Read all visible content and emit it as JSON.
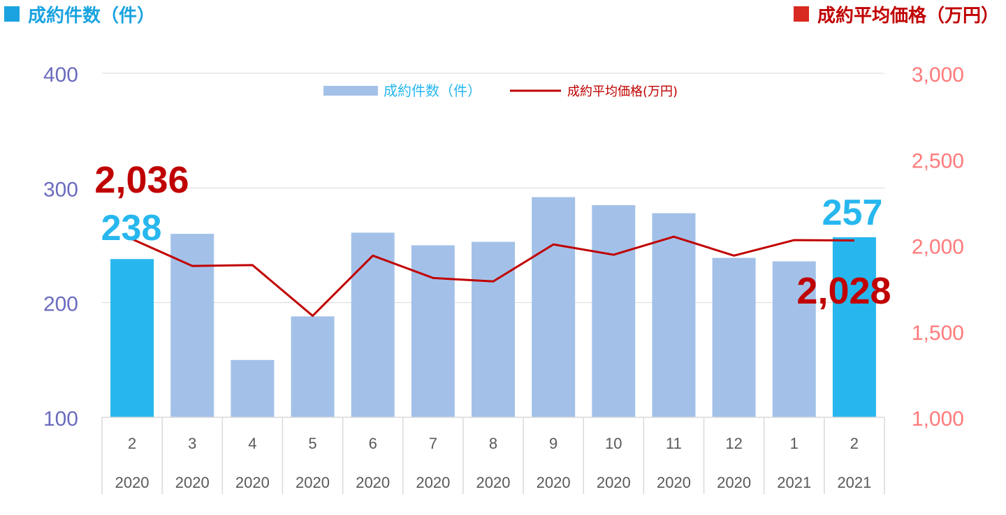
{
  "header": {
    "left_title": "成約件数（件）",
    "right_title": "成約平均価格（万円）"
  },
  "colors": {
    "bar": "#a3c1e8",
    "bar_highlight": "#27b7ee",
    "line": "#c00000",
    "left_axis": "#6b6bbf",
    "right_axis": "#ff7a7a",
    "legend_bar_text": "#27b7ee",
    "legend_line_text": "#c00000"
  },
  "chart_data": {
    "type": "bar",
    "categories": [
      [
        "2",
        "2020"
      ],
      [
        "3",
        "2020"
      ],
      [
        "4",
        "2020"
      ],
      [
        "5",
        "2020"
      ],
      [
        "6",
        "2020"
      ],
      [
        "7",
        "2020"
      ],
      [
        "8",
        "2020"
      ],
      [
        "9",
        "2020"
      ],
      [
        "10",
        "2020"
      ],
      [
        "11",
        "2020"
      ],
      [
        "12",
        "2020"
      ],
      [
        "1",
        "2021"
      ],
      [
        "2",
        "2021"
      ]
    ],
    "series": [
      {
        "name": "成約件数（件）",
        "kind": "bar",
        "axis": "left",
        "values": [
          238,
          260,
          150,
          188,
          261,
          250,
          253,
          292,
          285,
          278,
          239,
          236,
          257
        ],
        "highlight": [
          0,
          12
        ]
      },
      {
        "name": "成約平均価格(万円)",
        "kind": "line",
        "axis": "right",
        "values": [
          2036,
          1880,
          1885,
          1590,
          1940,
          1810,
          1790,
          2005,
          1945,
          2050,
          1940,
          2030,
          2028
        ]
      }
    ],
    "left_axis": {
      "ylim": [
        100,
        400
      ],
      "ticks": [
        "100",
        "200",
        "300",
        "400"
      ]
    },
    "right_axis": {
      "ylim": [
        1000,
        3000
      ],
      "ticks": [
        "1,000",
        "1,500",
        "2,000",
        "2,500",
        "3,000"
      ]
    },
    "grid": true,
    "legend_position": "top-center",
    "annotations": {
      "bar_first": "238",
      "bar_last": "257",
      "line_first": "2,036",
      "line_last": "2,028"
    }
  }
}
